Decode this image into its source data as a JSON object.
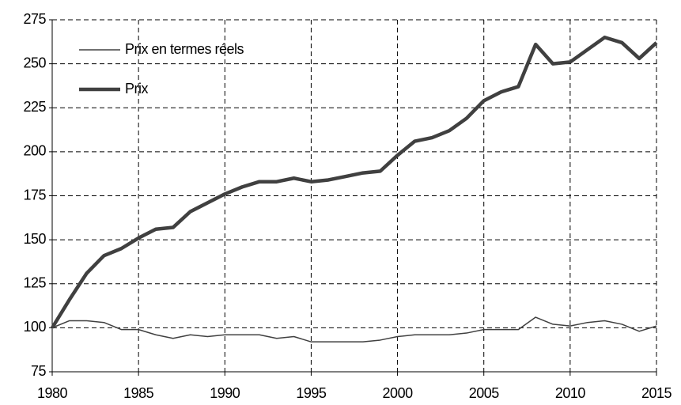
{
  "chart_data": {
    "type": "line",
    "x": [
      1980,
      1981,
      1982,
      1983,
      1984,
      1985,
      1986,
      1987,
      1988,
      1989,
      1990,
      1991,
      1992,
      1993,
      1994,
      1995,
      1996,
      1997,
      1998,
      1999,
      2000,
      2001,
      2002,
      2003,
      2004,
      2005,
      2006,
      2007,
      2008,
      2009,
      2010,
      2011,
      2012,
      2013,
      2014,
      2015
    ],
    "series": [
      {
        "name": "Prix en termes réels",
        "color": "#404040",
        "line_width": 1.5,
        "values": [
          100,
          104,
          104,
          103,
          99,
          99,
          96,
          94,
          96,
          95,
          96,
          96,
          96,
          94,
          95,
          92,
          92,
          92,
          92,
          93,
          95,
          96,
          96,
          96,
          97,
          99,
          99,
          99,
          106,
          102,
          101,
          103,
          104,
          102,
          98,
          101
        ]
      },
      {
        "name": "Prix",
        "color": "#404040",
        "line_width": 4.5,
        "values": [
          100,
          116,
          131,
          141,
          145,
          151,
          156,
          157,
          166,
          171,
          176,
          180,
          183,
          183,
          185,
          183,
          184,
          186,
          188,
          189,
          198,
          206,
          208,
          212,
          219,
          229,
          234,
          237,
          261,
          250,
          251,
          258,
          265,
          262,
          253,
          262
        ]
      }
    ],
    "xlim": [
      1980,
      2015
    ],
    "xticks": [
      1980,
      1985,
      1990,
      1995,
      2000,
      2005,
      2010,
      2015
    ],
    "ylim": [
      75,
      275
    ],
    "yticks": [
      75,
      100,
      125,
      150,
      175,
      200,
      225,
      250,
      275
    ],
    "grid": true,
    "legend": "upper-left"
  }
}
